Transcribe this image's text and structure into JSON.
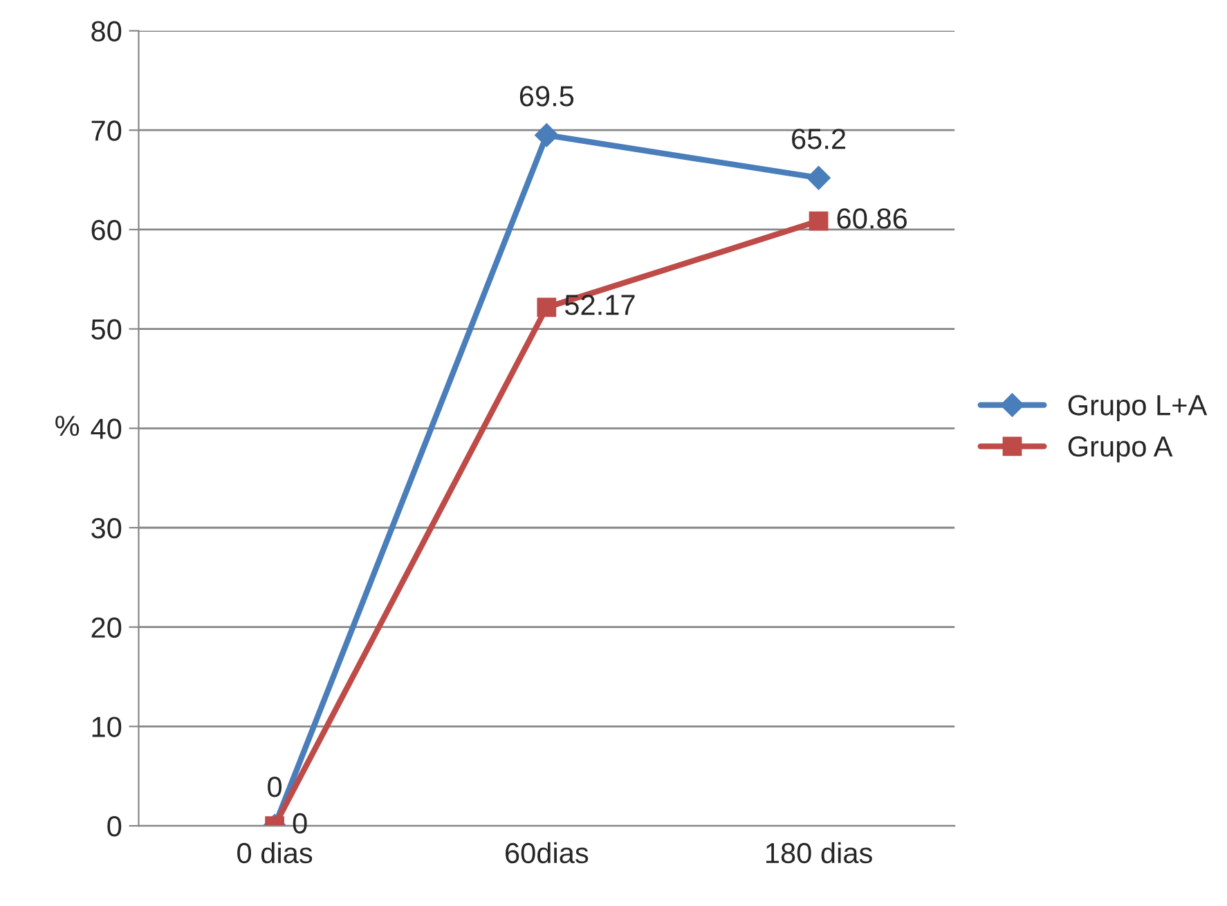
{
  "chart_data": {
    "type": "line",
    "ylabel": "%",
    "categories": [
      "0 dias",
      "60dias",
      "180 dias"
    ],
    "series": [
      {
        "name": "Grupo L+A",
        "color": "#4a7ebb",
        "marker": "diamond",
        "values": [
          0,
          69.5,
          65.2
        ]
      },
      {
        "name": "Grupo A",
        "color": "#be4b48",
        "marker": "square",
        "values": [
          0,
          52.17,
          60.86
        ]
      }
    ],
    "ylim": [
      0,
      80
    ],
    "yticks": [
      0,
      10,
      20,
      30,
      40,
      50,
      60,
      70,
      80
    ],
    "grid": "y",
    "legend": "right",
    "data_labels": true,
    "line_style": "solid"
  }
}
